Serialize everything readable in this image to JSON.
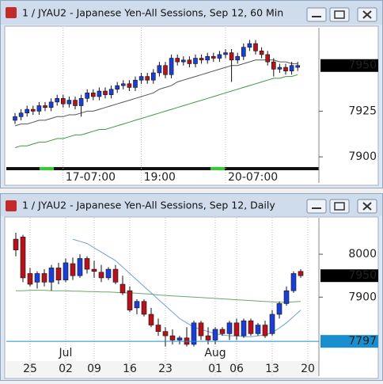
{
  "chart_data": [
    {
      "type": "candlestick",
      "title": "1 / JYAU2 - Japanese Yen-All Sessions, Sep 12, 60 Min",
      "categories": [
        null,
        null,
        null,
        null,
        null,
        null,
        null,
        null,
        "17-07:00",
        null,
        null,
        null,
        null,
        null,
        null,
        null,
        null,
        null,
        null,
        null,
        null,
        "19:00",
        null,
        null,
        null,
        null,
        null,
        null,
        null,
        null,
        null,
        null,
        null,
        null,
        null,
        "20-07:00",
        null,
        null,
        null,
        null,
        null,
        null,
        null,
        null,
        null,
        null,
        null,
        null
      ],
      "open": [
        7920,
        7922,
        7924,
        7926,
        7925,
        7928,
        7927,
        7930,
        7932,
        7929,
        7931,
        7928,
        7932,
        7935,
        7933,
        7936,
        7934,
        7937,
        7939,
        7940,
        7938,
        7942,
        7944,
        7942,
        7946,
        7950,
        7945,
        7954,
        7952,
        7953,
        7951,
        7954,
        7953,
        7955,
        7954,
        7956,
        7957,
        7953,
        7955,
        7960,
        7962,
        7958,
        7956,
        7952,
        7948,
        7949,
        7947,
        7949
      ],
      "high": [
        7924,
        7926,
        7928,
        7928,
        7930,
        7930,
        7932,
        7934,
        7934,
        7933,
        7933,
        7934,
        7937,
        7937,
        7938,
        7938,
        7939,
        7941,
        7942,
        7942,
        7944,
        7946,
        7946,
        7948,
        7952,
        7952,
        7956,
        7956,
        7955,
        7955,
        7956,
        7956,
        7957,
        7957,
        7958,
        7959,
        7959,
        7957,
        7962,
        7964,
        7964,
        7960,
        7958,
        7954,
        7951,
        7951,
        7952,
        7952
      ],
      "low": [
        7918,
        7920,
        7922,
        7923,
        7923,
        7925,
        7925,
        7928,
        7927,
        7927,
        7926,
        7922,
        7930,
        7931,
        7931,
        7932,
        7932,
        7935,
        7937,
        7936,
        7936,
        7940,
        7940,
        7940,
        7944,
        7943,
        7943,
        7950,
        7950,
        7949,
        7949,
        7951,
        7951,
        7952,
        7952,
        7954,
        7941,
        7951,
        7953,
        7958,
        7956,
        7954,
        7950,
        7944,
        7946,
        7945,
        7945,
        7947
      ],
      "close": [
        7922,
        7924,
        7926,
        7925,
        7928,
        7927,
        7930,
        7932,
        7929,
        7931,
        7928,
        7932,
        7935,
        7933,
        7936,
        7934,
        7937,
        7939,
        7940,
        7938,
        7942,
        7944,
        7942,
        7946,
        7950,
        7945,
        7954,
        7952,
        7953,
        7951,
        7954,
        7953,
        7955,
        7954,
        7956,
        7957,
        7953,
        7955,
        7960,
        7962,
        7958,
        7956,
        7952,
        7948,
        7949,
        7947,
        7950,
        7950
      ],
      "up_color": "#1b3fd6",
      "down_color": "#b5121b",
      "series": [
        {
          "color": "#555555",
          "values": [
            7917,
            7918,
            7918,
            7919,
            7920,
            7920,
            7921,
            7922,
            7922,
            7923,
            7923,
            7924,
            7925,
            7925,
            7926,
            7927,
            7928,
            7929,
            7930,
            7931,
            7932,
            7933,
            7934,
            7935,
            7937,
            7938,
            7939,
            7941,
            7942,
            7943,
            7944,
            7945,
            7946,
            7947,
            7948,
            7949,
            7950,
            7950,
            7951,
            7952,
            7953,
            7953,
            7953,
            7953,
            7952,
            7952,
            7951,
            7951
          ]
        },
        {
          "color": "#3c9a3c",
          "values": [
            7905,
            7906,
            7906,
            7907,
            7908,
            7908,
            7909,
            7910,
            7910,
            7911,
            7912,
            7912,
            7913,
            7914,
            7915,
            7915,
            7916,
            7917,
            7918,
            7919,
            7920,
            7921,
            7922,
            7923,
            7924,
            7925,
            7926,
            7927,
            7928,
            7929,
            7930,
            7931,
            7932,
            7933,
            7934,
            7935,
            7936,
            7937,
            7938,
            7939,
            7940,
            7941,
            7942,
            7943,
            7943,
            7944,
            7944,
            7945
          ]
        }
      ],
      "ylim": [
        7894.4,
        7970.7
      ],
      "yticks": [
        7900,
        7925
      ],
      "markers": [
        {
          "value": 7950,
          "color": "#000000"
        }
      ]
    },
    {
      "type": "candlestick",
      "title": "1 / JYAU2 - Japanese Yen-All Sessions, Sep 12, Daily",
      "categories": [
        null,
        null,
        "25",
        null,
        null,
        null,
        null,
        "02",
        null,
        null,
        null,
        "09",
        null,
        null,
        null,
        null,
        "16",
        null,
        null,
        null,
        null,
        "23",
        null,
        null,
        null,
        null,
        null,
        null,
        "01",
        null,
        null,
        "06",
        null,
        null,
        null,
        null,
        "13",
        null,
        null,
        null,
        null,
        "20"
      ],
      "months": [
        null,
        null,
        null,
        null,
        null,
        null,
        null,
        "Jul",
        null,
        null,
        null,
        null,
        null,
        null,
        null,
        null,
        null,
        null,
        null,
        null,
        null,
        null,
        null,
        null,
        null,
        null,
        null,
        null,
        "Aug",
        null,
        null,
        null,
        null,
        null,
        null,
        null,
        null,
        null,
        null,
        null,
        null,
        null
      ],
      "open": [
        8035,
        8040,
        7955,
        7935,
        7955,
        7935,
        7968,
        7940,
        7978,
        7950,
        7990,
        7965,
        7958,
        7945,
        7965,
        7930,
        7915,
        7875,
        7890,
        7860,
        7835,
        7820,
        7810,
        7800,
        7805,
        7790,
        7840,
        7810,
        7800,
        7825,
        7815,
        7840,
        7810,
        7845,
        7815,
        7835,
        7815,
        7860,
        7885,
        7915,
        7960,
        null
      ],
      "high": [
        8050,
        8045,
        7968,
        7960,
        7965,
        7975,
        7980,
        7990,
        7992,
        8000,
        7995,
        7985,
        7975,
        7970,
        7975,
        7950,
        7925,
        7895,
        7895,
        7875,
        7850,
        7830,
        7825,
        7810,
        7830,
        7845,
        7845,
        7830,
        7830,
        7830,
        7845,
        7850,
        7850,
        7850,
        7840,
        7845,
        7870,
        7890,
        7925,
        7960,
        7965,
        null
      ],
      "low": [
        7995,
        7935,
        7925,
        7920,
        7925,
        7915,
        7930,
        7935,
        7940,
        7945,
        7955,
        7945,
        7935,
        7940,
        7930,
        7905,
        7865,
        7860,
        7855,
        7830,
        7810,
        7785,
        7790,
        7790,
        7785,
        7785,
        7800,
        7790,
        7790,
        7810,
        7800,
        7800,
        7805,
        7810,
        7810,
        7805,
        7810,
        7850,
        7880,
        7910,
        7945,
        null
      ],
      "close": [
        8010,
        7945,
        7930,
        7955,
        7935,
        7968,
        7940,
        7980,
        7950,
        7990,
        7965,
        7960,
        7945,
        7965,
        7935,
        7910,
        7870,
        7890,
        7860,
        7835,
        7820,
        7810,
        7800,
        7805,
        7790,
        7840,
        7810,
        7800,
        7825,
        7815,
        7840,
        7810,
        7845,
        7815,
        7835,
        7810,
        7860,
        7885,
        7915,
        7955,
        7950,
        null
      ],
      "up_color": "#1b3fd6",
      "down_color": "#b5121b",
      "series": [
        {
          "color": "#6f9fd8",
          "values": [
            null,
            null,
            null,
            null,
            null,
            null,
            null,
            null,
            8035,
            8030,
            8025,
            8015,
            8005,
            7995,
            7985,
            7970,
            7955,
            7940,
            7925,
            7910,
            7895,
            7880,
            7865,
            7850,
            7840,
            7830,
            7825,
            7820,
            7815,
            7812,
            7810,
            7810,
            7808,
            7808,
            7810,
            7812,
            7818,
            7828,
            7840,
            7855,
            7870,
            null
          ]
        },
        {
          "color": "#6aa86a",
          "values": [
            7915,
            7915,
            7916,
            7916,
            7916,
            7915,
            7915,
            7915,
            7914,
            7914,
            7913,
            7913,
            7912,
            7912,
            7911,
            7910,
            7910,
            7909,
            7908,
            7907,
            7905,
            7904,
            7903,
            7902,
            7901,
            7900,
            7899,
            7898,
            7897,
            7896,
            7895,
            7894,
            7893,
            7892,
            7891,
            7890,
            7889,
            7888,
            7888,
            7889,
            7890,
            null
          ]
        }
      ],
      "ylim": [
        7753,
        8085
      ],
      "yticks": [
        7900,
        8000
      ],
      "markers": [
        {
          "value": 7950,
          "color": "#000000"
        },
        {
          "value": 7797,
          "color": "#1a8fd0",
          "line": true
        }
      ]
    }
  ]
}
